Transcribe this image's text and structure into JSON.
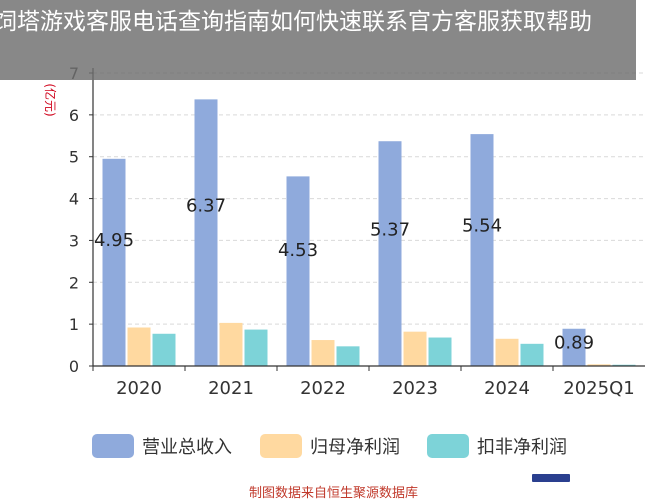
{
  "overlay": {
    "title": "饲塔游戏客服电话查询指南如何快速联系官方客服获取帮助"
  },
  "chart_data": {
    "type": "bar",
    "ylabel": "(亿元)",
    "ylim": [
      0,
      7
    ],
    "yticks": [
      0,
      1,
      2,
      3,
      4,
      5,
      6,
      7
    ],
    "categories": [
      "2020",
      "2021",
      "2022",
      "2023",
      "2024",
      "2025Q1"
    ],
    "series": [
      {
        "name": "营业总收入",
        "color": "#8faadc",
        "values": [
          4.95,
          6.37,
          4.53,
          5.37,
          5.54,
          0.89
        ]
      },
      {
        "name": "归母净利润",
        "color": "#ffd9a0",
        "values": [
          0.92,
          1.03,
          0.62,
          0.82,
          0.65,
          0.04
        ]
      },
      {
        "name": "扣非净利润",
        "color": "#7dd3d8",
        "values": [
          0.77,
          0.87,
          0.47,
          0.68,
          0.53,
          0.03
        ]
      }
    ],
    "data_labels": [
      "4.95",
      "6.37",
      "4.53",
      "5.37",
      "5.54",
      "0.89"
    ],
    "legend_position": "bottom",
    "source": "制图数据来自恒生聚源数据库"
  }
}
